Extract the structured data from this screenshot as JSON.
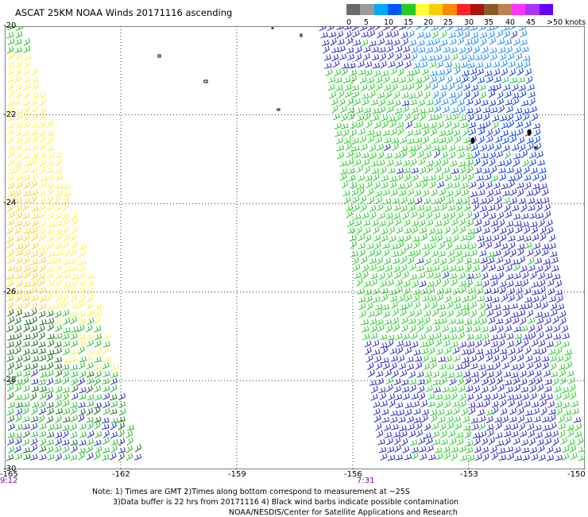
{
  "title": "ASCAT 25KM NOAA Winds 20171116 ascending",
  "legend": {
    "colors": [
      "#6b6b6b",
      "#9a9a9a",
      "#00aaff",
      "#0055ff",
      "#22cc22",
      "#ffff33",
      "#ffcc00",
      "#ff8800",
      "#ff2222",
      "#aa1111",
      "#8b5a2b",
      "#c08050",
      "#ff33ff",
      "#aa33ff",
      "#6600ff"
    ],
    "ticks": [
      "0",
      "5",
      "10",
      "15",
      "20",
      "25",
      "30",
      "35",
      "40",
      "45",
      ">50 knots"
    ]
  },
  "axes": {
    "y_ticks": [
      "-20",
      "-22",
      "-24",
      "-26",
      "-28",
      "-30"
    ],
    "x_ticks": [
      "-165",
      "-162",
      "-159",
      "-156",
      "-153",
      "-150"
    ],
    "x_range": [
      -165,
      -150
    ],
    "y_range": [
      -30,
      -20
    ],
    "grid": true
  },
  "times": {
    "left": "9:12",
    "right": "7:31"
  },
  "notes": {
    "line1": "Note: 1) Times are GMT 2)Times along bottom correspond to measurement at ~25S",
    "line2": "3)Data buffer is 22 hrs from 20171116 4) Black wind barbs indicate possible contamination",
    "line3": "NOAA/NESDIS/Center for Satellite Applications and Research"
  },
  "swaths": {
    "left": {
      "speed_colors": [
        "#ffee44",
        "#ffcc22",
        "#22bb22",
        "#116611",
        "#2222cc"
      ]
    },
    "right": {
      "speed_colors": [
        "#2222cc",
        "#0033ee",
        "#22cc22",
        "#1188ff"
      ]
    }
  }
}
